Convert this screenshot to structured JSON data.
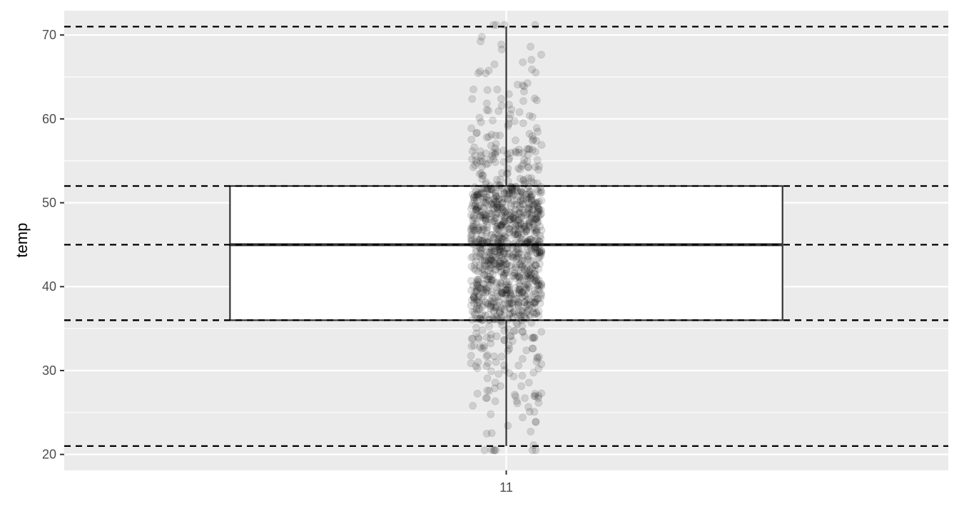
{
  "chart_data": {
    "type": "boxplot",
    "title": "",
    "xlabel": "",
    "ylabel": "temp",
    "categories": [
      "11"
    ],
    "ylim": [
      18.1,
      72.9
    ],
    "yticks": [
      20,
      30,
      40,
      50,
      60,
      70
    ],
    "box": {
      "category": "11",
      "min": 21,
      "q1": 36,
      "median": 45,
      "q3": 52,
      "max": 71
    },
    "reference_lines": [
      71,
      52,
      45,
      36,
      21
    ],
    "jitter_points": {
      "count": 1200,
      "alpha": 0.12,
      "range": [
        20.5,
        71.2
      ],
      "dense_range": [
        36,
        52
      ]
    },
    "grid": true,
    "legend": "none",
    "colors": {
      "panel_background": "#ebebeb",
      "grid": "#ffffff",
      "box_fill": "#ffffff",
      "box_stroke": "#333333",
      "points": "#000000",
      "reference_line": "#000000"
    }
  }
}
